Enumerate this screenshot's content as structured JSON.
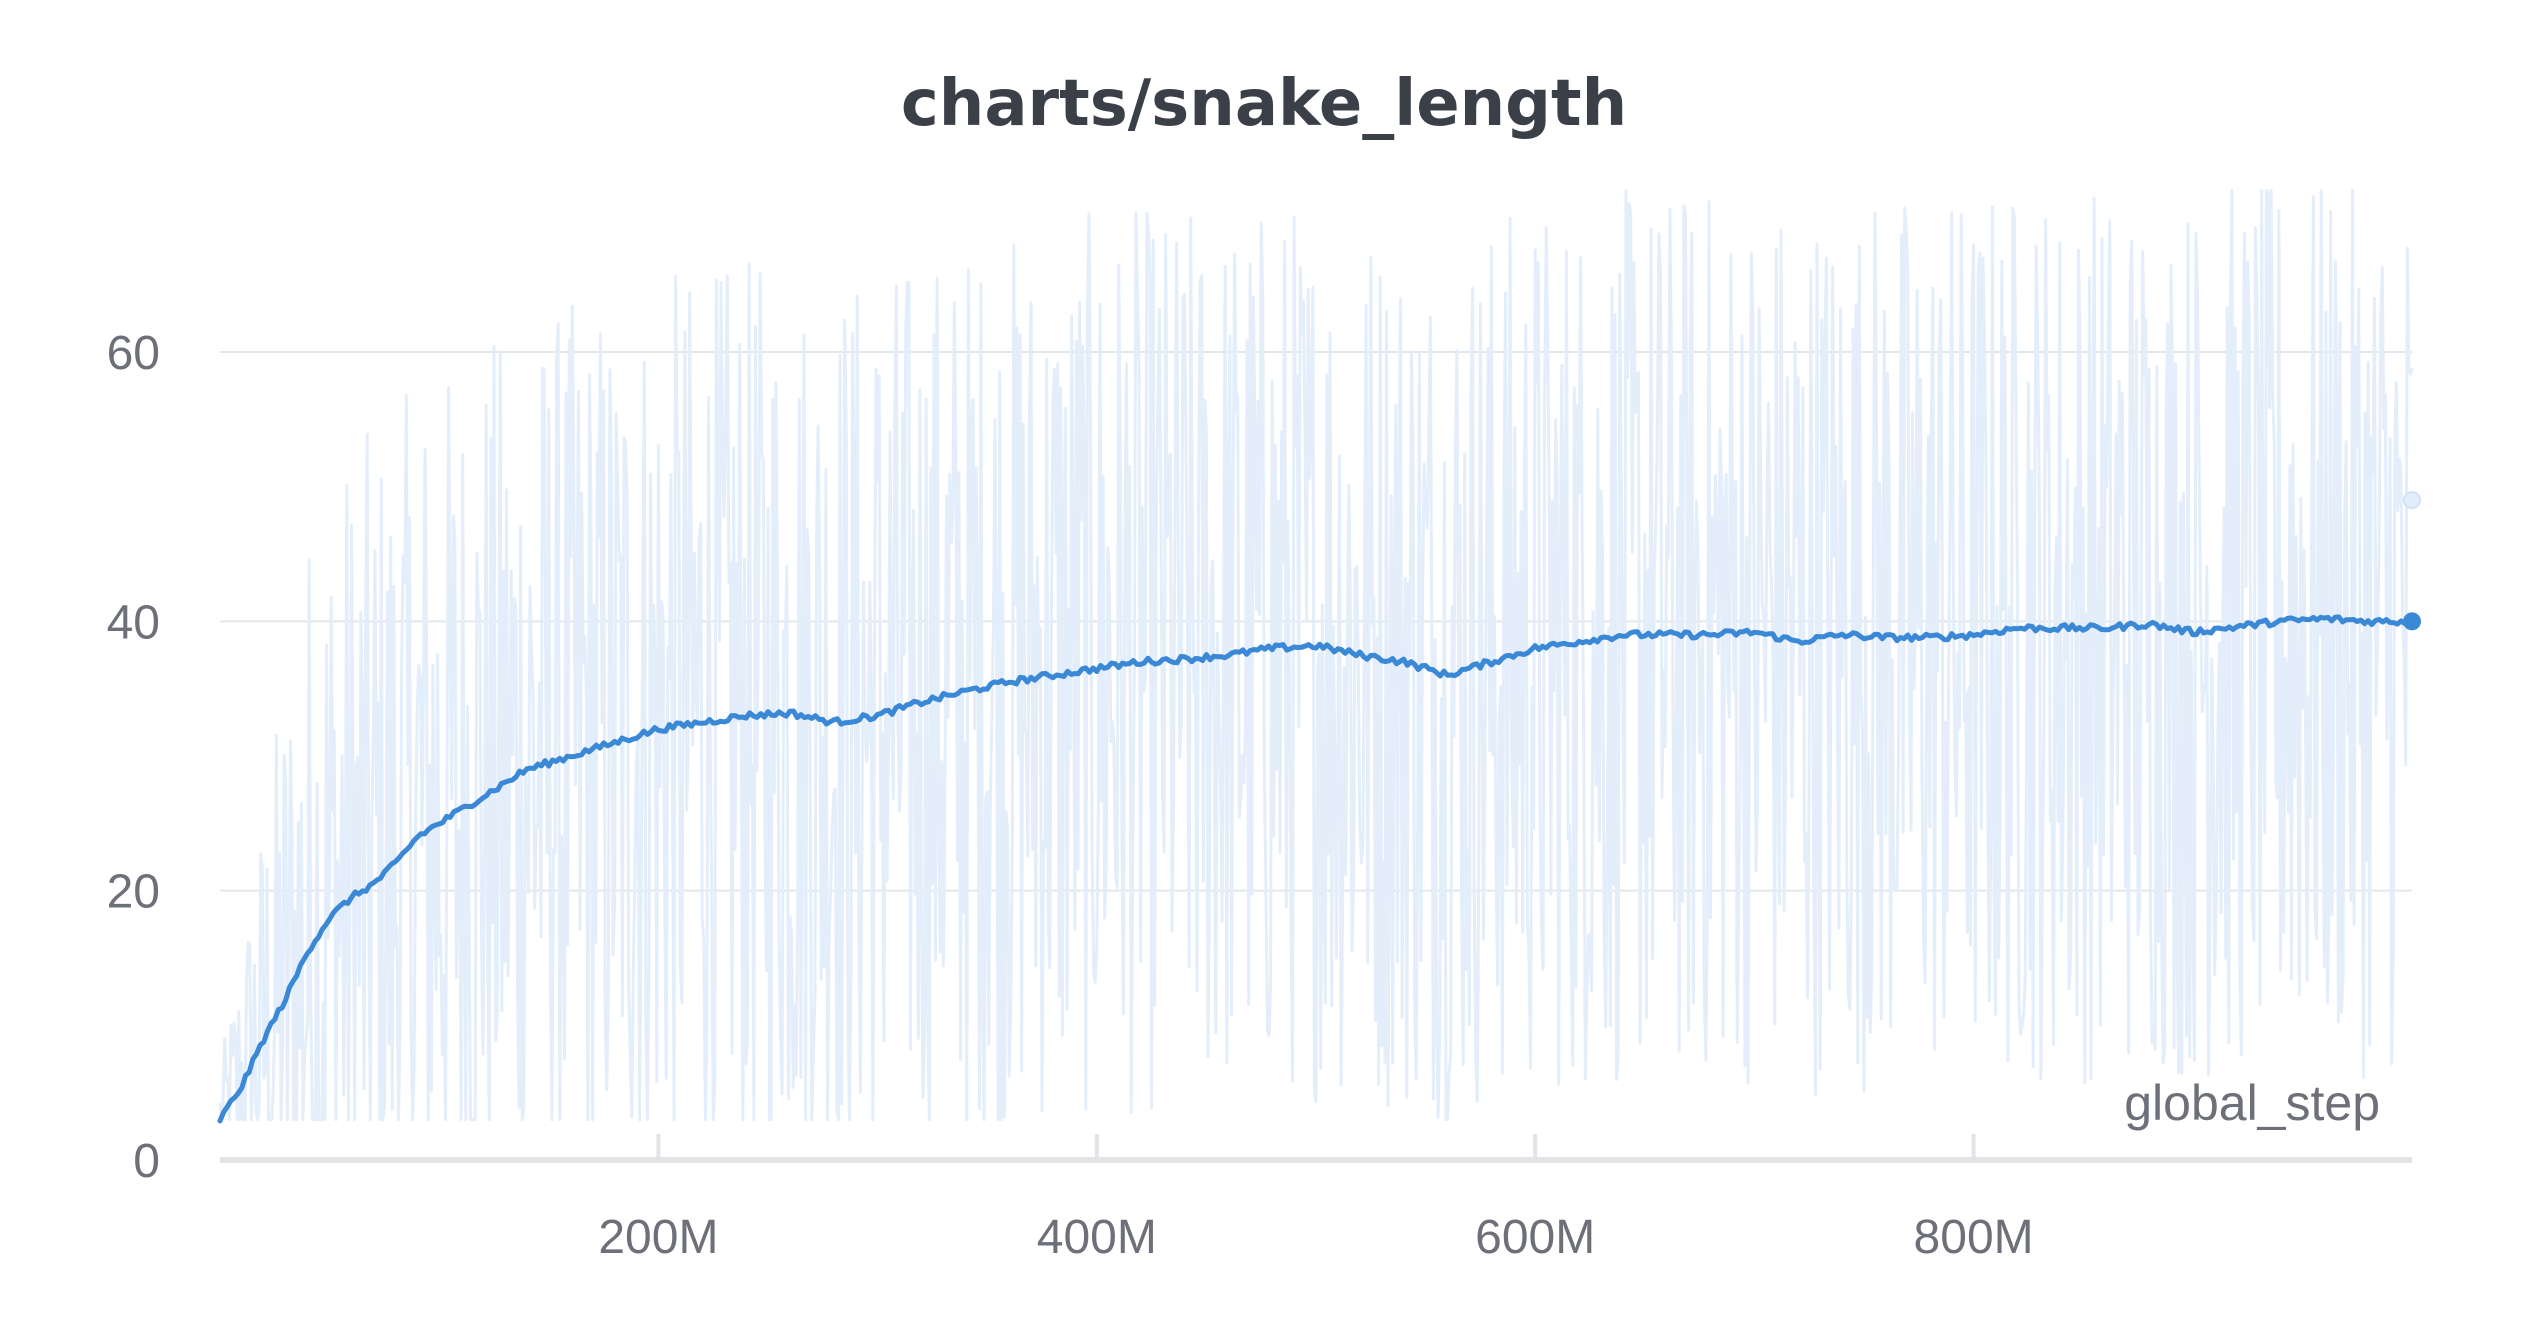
{
  "chart_data": {
    "type": "line",
    "title": "charts/snake_length",
    "xlabel": "global_step",
    "ylabel": "",
    "xlim": [
      0,
      1000000000
    ],
    "ylim": [
      0,
      75
    ],
    "x_ticks": [
      {
        "value": 200000000,
        "label": "200M"
      },
      {
        "value": 400000000,
        "label": "400M"
      },
      {
        "value": 600000000,
        "label": "600M"
      },
      {
        "value": 800000000,
        "label": "800M"
      }
    ],
    "y_ticks": [
      {
        "value": 0,
        "label": "0"
      },
      {
        "value": 20,
        "label": "20"
      },
      {
        "value": 40,
        "label": "40"
      },
      {
        "value": 60,
        "label": "60"
      }
    ],
    "grid": true,
    "colors": {
      "smoothed": "#3a88d6",
      "raw": "#e3eefa",
      "grid": "#e3e6ea",
      "axis": "#e2e3e6",
      "text": "#6e7079",
      "title": "#3b3f48"
    },
    "series": [
      {
        "role": "smoothed",
        "x": [
          0,
          10000000,
          20000000,
          30000000,
          40000000,
          50000000,
          60000000,
          70000000,
          80000000,
          90000000,
          100000000,
          110000000,
          120000000,
          130000000,
          140000000,
          150000000,
          160000000,
          170000000,
          180000000,
          190000000,
          200000000,
          220000000,
          240000000,
          260000000,
          280000000,
          300000000,
          320000000,
          340000000,
          360000000,
          380000000,
          400000000,
          420000000,
          440000000,
          460000000,
          480000000,
          500000000,
          520000000,
          540000000,
          560000000,
          580000000,
          600000000,
          620000000,
          640000000,
          660000000,
          680000000,
          700000000,
          720000000,
          740000000,
          760000000,
          780000000,
          800000000,
          820000000,
          840000000,
          860000000,
          880000000,
          900000000,
          920000000,
          940000000,
          960000000,
          980000000,
          1000000000
        ],
        "y": [
          3,
          5.5,
          9,
          12,
          15.5,
          18,
          19.5,
          20.5,
          22,
          24,
          25,
          26,
          27,
          28,
          29,
          29.5,
          30,
          30.5,
          31,
          31.5,
          32,
          32.5,
          33,
          33.2,
          32.5,
          33,
          34,
          34.8,
          35.5,
          36,
          36.5,
          37,
          37.2,
          37.5,
          38,
          38.2,
          37.5,
          37,
          36,
          37,
          38,
          38.5,
          39,
          39,
          39,
          39.2,
          38.5,
          39,
          38.8,
          38.8,
          39,
          39.5,
          39.5,
          39.5,
          39.8,
          39.2,
          39.6,
          40,
          40.2,
          40,
          40
        ]
      },
      {
        "role": "raw",
        "x_range": [
          0,
          1000000000
        ],
        "y_range": [
          3,
          72
        ],
        "last_value": 49
      }
    ]
  }
}
